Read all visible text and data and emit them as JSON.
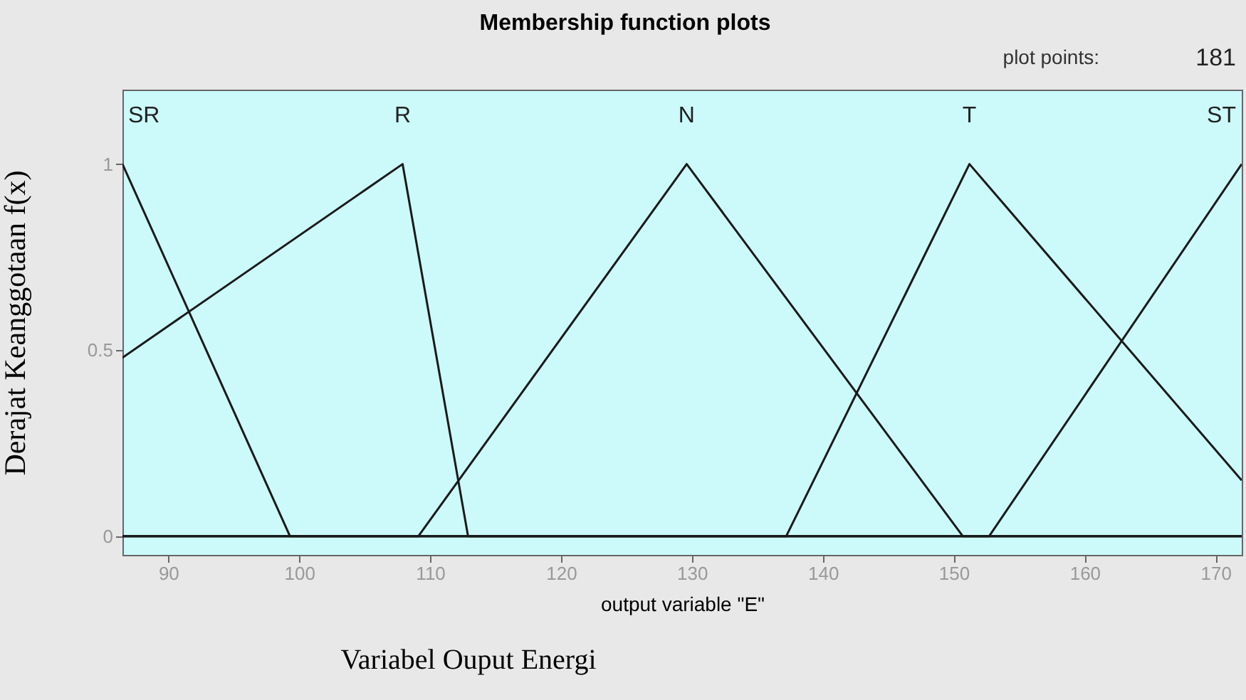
{
  "chart_data": {
    "type": "line",
    "title": "Membership function plots",
    "xlabel": "output variable \"E\"",
    "ylabel": "Derajat Keanggotaan f(x)",
    "annotations": [
      "plot points:",
      "181",
      "Variabel Ouput Energi"
    ],
    "xlim": [
      86.5,
      172
    ],
    "ylim": [
      -0.05,
      1.2
    ],
    "xticks": [
      90,
      100,
      110,
      120,
      130,
      140,
      150,
      160,
      170
    ],
    "yticks": [
      0,
      0.5,
      1
    ],
    "grid": false,
    "marker": "none",
    "line_style": "solid",
    "series": [
      {
        "name": "SR",
        "color": "#1a1a1a",
        "x": [
          86.5,
          99.3,
          172
        ],
        "values": [
          1,
          0,
          0
        ]
      },
      {
        "name": "R",
        "color": "#1a1a1a",
        "x": [
          86.5,
          107.9,
          112.9,
          172
        ],
        "values": [
          0.48,
          1,
          0,
          0
        ]
      },
      {
        "name": "N",
        "color": "#1a1a1a",
        "x": [
          86.5,
          109.1,
          129.6,
          150.7,
          172
        ],
        "values": [
          0,
          0,
          1,
          0,
          0
        ]
      },
      {
        "name": "T",
        "color": "#1a1a1a",
        "x": [
          86.5,
          137.2,
          151.2,
          172
        ],
        "values": [
          0,
          0,
          1,
          0.15
        ]
      },
      {
        "name": "ST",
        "color": "#1a1a1a",
        "x": [
          86.5,
          152.7,
          172
        ],
        "values": [
          0,
          0,
          1
        ]
      }
    ]
  }
}
